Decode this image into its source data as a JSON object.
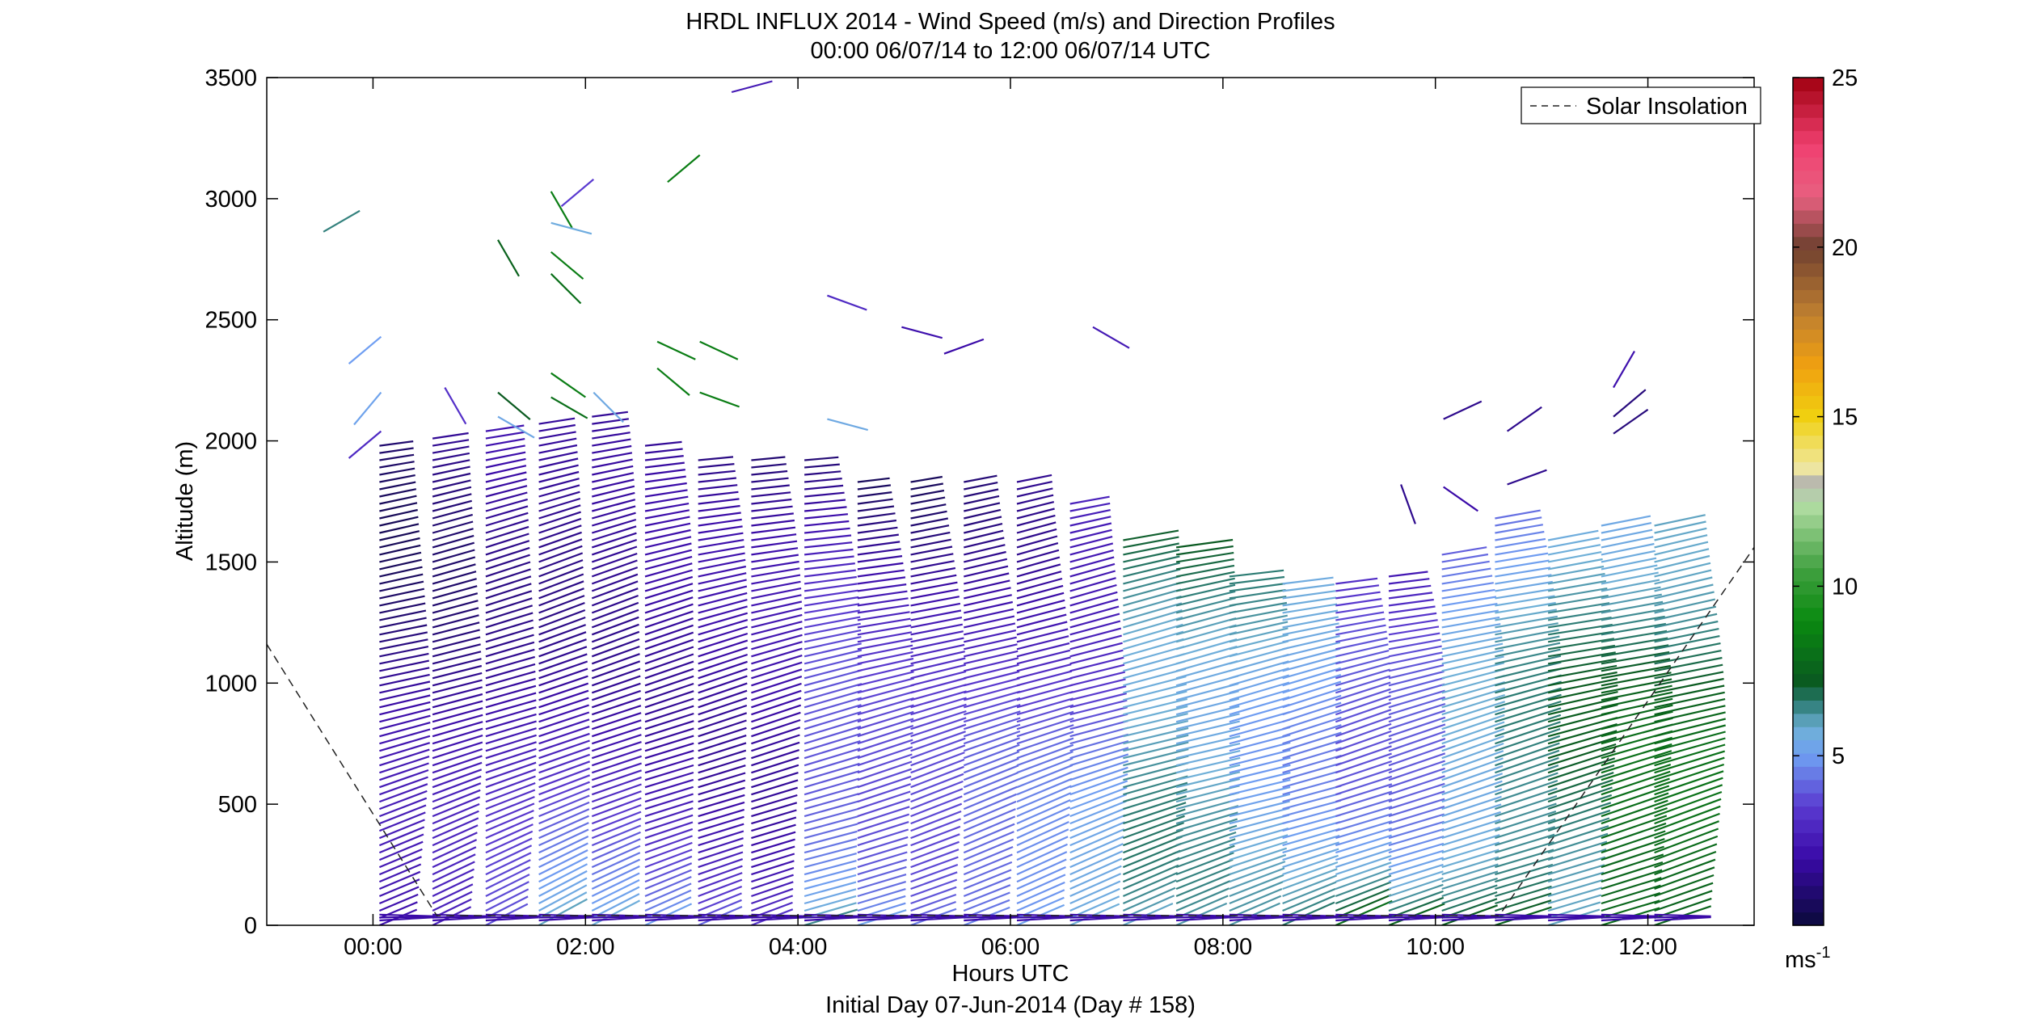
{
  "chart_data": {
    "type": "wind-barb-profile",
    "title": "HRDL INFLUX 2014 - Wind Speed (m/s) and Direction Profiles",
    "subtitle": "00:00 06/07/14 to 12:00 06/07/14  UTC",
    "xlabel": "Hours UTC",
    "xlabel2": "Initial Day 07-Jun-2014 (Day # 158)",
    "ylabel": "Altitude (m)",
    "xlim_hours": [
      -1.0,
      13.0
    ],
    "ylim": [
      0,
      3500
    ],
    "x_ticks": [
      {
        "value": 0,
        "label": "00:00"
      },
      {
        "value": 2,
        "label": "02:00"
      },
      {
        "value": 4,
        "label": "04:00"
      },
      {
        "value": 6,
        "label": "06:00"
      },
      {
        "value": 8,
        "label": "08:00"
      },
      {
        "value": 10,
        "label": "10:00"
      },
      {
        "value": 12,
        "label": "12:00"
      }
    ],
    "y_ticks": [
      {
        "value": 0,
        "label": "0"
      },
      {
        "value": 500,
        "label": "500"
      },
      {
        "value": 1000,
        "label": "1000"
      },
      {
        "value": 1500,
        "label": "1500"
      },
      {
        "value": 2000,
        "label": "2000"
      },
      {
        "value": 2500,
        "label": "2500"
      },
      {
        "value": 3000,
        "label": "3000"
      },
      {
        "value": 3500,
        "label": "3500"
      }
    ],
    "colorbar": {
      "min": 0,
      "max": 25,
      "ticks": [
        {
          "value": 5,
          "label": "5"
        },
        {
          "value": 10,
          "label": "10"
        },
        {
          "value": 15,
          "label": "15"
        },
        {
          "value": 20,
          "label": "20"
        },
        {
          "value": 25,
          "label": "25"
        }
      ],
      "unit_label": "ms",
      "unit_exp": "-1",
      "stops": [
        {
          "v": 0,
          "c": "#0a0a3a"
        },
        {
          "v": 2,
          "c": "#3a0aa8"
        },
        {
          "v": 3.5,
          "c": "#5a3ad0"
        },
        {
          "v": 5,
          "c": "#6f9ef2"
        },
        {
          "v": 5.8,
          "c": "#6fb0d8"
        },
        {
          "v": 6.6,
          "c": "#2a7a70"
        },
        {
          "v": 7.2,
          "c": "#0a5a20"
        },
        {
          "v": 9,
          "c": "#0a8a10"
        },
        {
          "v": 10.5,
          "c": "#40a040"
        },
        {
          "v": 12.5,
          "c": "#b8e0a8"
        },
        {
          "v": 13,
          "c": "#b0b0b0"
        },
        {
          "v": 13.5,
          "c": "#f0e8a0"
        },
        {
          "v": 15,
          "c": "#f0d010"
        },
        {
          "v": 16.5,
          "c": "#f0a010"
        },
        {
          "v": 18,
          "c": "#c08030"
        },
        {
          "v": 20,
          "c": "#704030"
        },
        {
          "v": 21.5,
          "c": "#e86080"
        },
        {
          "v": 23,
          "c": "#f04070"
        },
        {
          "v": 25,
          "c": "#a00010"
        }
      ]
    },
    "legend": {
      "label": "Solar Insolation",
      "position": "top-right",
      "style": "dashed"
    },
    "solar_insolation": {
      "x": [
        -1.0,
        0.6,
        10.6,
        13.0
      ],
      "y": [
        1160,
        40,
        40,
        1560
      ]
    },
    "profiles": [
      {
        "t": 0.0,
        "top": 2000,
        "speed_low": 2.2,
        "speed_high": 1.2,
        "dir": 285
      },
      {
        "t": 0.5,
        "top": 2020,
        "speed_low": 2.3,
        "speed_high": 1.5,
        "dir": 287
      },
      {
        "t": 1.0,
        "top": 2050,
        "speed_low": 3.2,
        "speed_high": 1.8,
        "dir": 288
      },
      {
        "t": 1.5,
        "top": 2070,
        "speed_low": 5.2,
        "speed_high": 1.0,
        "dir": 290
      },
      {
        "t": 2.0,
        "top": 2100,
        "speed_low": 5.0,
        "speed_high": 0.9,
        "dir": 289
      },
      {
        "t": 2.5,
        "top": 2000,
        "speed_low": 4.6,
        "speed_high": 1.0,
        "dir": 287
      },
      {
        "t": 3.0,
        "top": 1920,
        "speed_low": 4.0,
        "speed_high": 1.0,
        "dir": 286
      },
      {
        "t": 3.5,
        "top": 1920,
        "speed_low": 3.6,
        "speed_high": 1.1,
        "dir": 285
      },
      {
        "t": 4.0,
        "top": 1920,
        "speed_low": 7.0,
        "speed_high": 1.5,
        "dir": 283
      },
      {
        "t": 4.5,
        "top": 1830,
        "speed_low": 6.0,
        "speed_high": 1.3,
        "dir": 284
      },
      {
        "t": 5.0,
        "top": 1830,
        "speed_low": 5.2,
        "speed_high": 1.4,
        "dir": 286
      },
      {
        "t": 5.5,
        "top": 1830,
        "speed_low": 5.2,
        "speed_high": 1.8,
        "dir": 287
      },
      {
        "t": 6.0,
        "top": 1830,
        "speed_low": 5.4,
        "speed_high": 2.0,
        "dir": 288
      },
      {
        "t": 6.5,
        "top": 1750,
        "speed_low": 5.6,
        "speed_high": 2.8,
        "dir": 287
      },
      {
        "t": 7.0,
        "top": 1600,
        "speed_low": 5.4,
        "speed_high": 6.8,
        "dir": 286
      },
      {
        "t": 7.5,
        "top": 1580,
        "speed_low": 5.4,
        "speed_high": 6.6,
        "dir": 285
      },
      {
        "t": 8.0,
        "top": 1450,
        "speed_low": 5.4,
        "speed_high": 5.8,
        "dir": 285
      },
      {
        "t": 8.5,
        "top": 1430,
        "speed_low": 6.0,
        "speed_high": 4.8,
        "dir": 286
      },
      {
        "t": 9.0,
        "top": 1430,
        "speed_low": 7.6,
        "speed_high": 2.5,
        "dir": 287
      },
      {
        "t": 9.5,
        "top": 1450,
        "speed_low": 7.6,
        "speed_high": 2.2,
        "dir": 286
      },
      {
        "t": 10.0,
        "top": 1550,
        "speed_low": 7.8,
        "speed_high": 4.2,
        "dir": 286
      },
      {
        "t": 10.5,
        "top": 1700,
        "speed_low": 8.2,
        "speed_high": 4.8,
        "dir": 285
      },
      {
        "t": 11.0,
        "top": 1610,
        "speed_low": 6.8,
        "speed_high": 6.4,
        "dir": 284
      },
      {
        "t": 11.5,
        "top": 1670,
        "speed_low": 8.6,
        "speed_high": 6.2,
        "dir": 284
      },
      {
        "t": 12.0,
        "top": 1670,
        "speed_low": 8.0,
        "speed_high": 6.6,
        "dir": 285
      }
    ],
    "scatter_barbs": [
      {
        "t": -0.2,
        "alt": 2950,
        "speed": 6.5,
        "dir": 120
      },
      {
        "t": 0.0,
        "alt": 2430,
        "speed": 5.0,
        "dir": 130
      },
      {
        "t": 0.0,
        "alt": 2200,
        "speed": 5.2,
        "dir": 140
      },
      {
        "t": 0.0,
        "alt": 2040,
        "speed": 3.0,
        "dir": 130
      },
      {
        "t": 0.6,
        "alt": 2220,
        "speed": 3.2,
        "dir": 210
      },
      {
        "t": 1.1,
        "alt": 2830,
        "speed": 7.5,
        "dir": 210
      },
      {
        "t": 1.1,
        "alt": 2200,
        "speed": 7.2,
        "dir": 230
      },
      {
        "t": 1.1,
        "alt": 2100,
        "speed": 5.4,
        "dir": 240
      },
      {
        "t": 1.6,
        "alt": 3030,
        "speed": 8.5,
        "dir": 210
      },
      {
        "t": 1.6,
        "alt": 2900,
        "speed": 5.6,
        "dir": 255
      },
      {
        "t": 1.6,
        "alt": 2780,
        "speed": 8.5,
        "dir": 230
      },
      {
        "t": 1.6,
        "alt": 2690,
        "speed": 8.0,
        "dir": 225
      },
      {
        "t": 1.6,
        "alt": 2280,
        "speed": 8.5,
        "dir": 235
      },
      {
        "t": 1.6,
        "alt": 2180,
        "speed": 8.0,
        "dir": 240
      },
      {
        "t": 2.0,
        "alt": 3080,
        "speed": 3.5,
        "dir": 130
      },
      {
        "t": 2.0,
        "alt": 2200,
        "speed": 5.5,
        "dir": 225
      },
      {
        "t": 2.6,
        "alt": 2410,
        "speed": 8.5,
        "dir": 245
      },
      {
        "t": 2.6,
        "alt": 2300,
        "speed": 8.5,
        "dir": 230
      },
      {
        "t": 3.0,
        "alt": 3180,
        "speed": 8.5,
        "dir": 130
      },
      {
        "t": 3.0,
        "alt": 2410,
        "speed": 8.5,
        "dir": 245
      },
      {
        "t": 3.0,
        "alt": 2200,
        "speed": 8.5,
        "dir": 250
      },
      {
        "t": 3.3,
        "alt": 3440,
        "speed": 2.5,
        "dir": 285
      },
      {
        "t": 4.2,
        "alt": 2600,
        "speed": 3.0,
        "dir": 250
      },
      {
        "t": 4.2,
        "alt": 2090,
        "speed": 5.5,
        "dir": 255
      },
      {
        "t": 4.9,
        "alt": 2470,
        "speed": 2.2,
        "dir": 255
      },
      {
        "t": 5.3,
        "alt": 2360,
        "speed": 2.0,
        "dir": 290
      },
      {
        "t": 6.7,
        "alt": 2470,
        "speed": 2.5,
        "dir": 240
      },
      {
        "t": 10.0,
        "alt": 2090,
        "speed": 1.5,
        "dir": 295
      },
      {
        "t": 10.6,
        "alt": 2040,
        "speed": 1.5,
        "dir": 305
      },
      {
        "t": 11.6,
        "alt": 2220,
        "speed": 2.2,
        "dir": 330
      },
      {
        "t": 11.6,
        "alt": 2100,
        "speed": 1.2,
        "dir": 310
      },
      {
        "t": 11.6,
        "alt": 2030,
        "speed": 1.2,
        "dir": 305
      },
      {
        "t": 9.6,
        "alt": 1820,
        "speed": 1.5,
        "dir": 200
      },
      {
        "t": 10.0,
        "alt": 1810,
        "speed": 2.0,
        "dir": 235
      },
      {
        "t": 10.6,
        "alt": 1820,
        "speed": 1.5,
        "dir": 290
      }
    ]
  }
}
